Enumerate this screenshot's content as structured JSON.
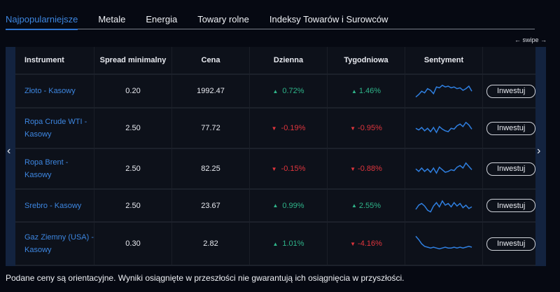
{
  "tabs": [
    {
      "label": "Najpopularniejsze",
      "active": true
    },
    {
      "label": "Metale"
    },
    {
      "label": "Energia"
    },
    {
      "label": "Towary rolne"
    },
    {
      "label": "Indeksy Towarów i Surowców"
    }
  ],
  "swipe_hint": "← swipe →",
  "table": {
    "headers": [
      "Instrument",
      "Spread minimalny",
      "Cena",
      "Dzienna",
      "Tygodniowa",
      "Sentyment",
      ""
    ],
    "rows": [
      {
        "instrument": "Złoto - Kasowy",
        "spread": "0.20",
        "price": "1992.47",
        "daily": "0.72%",
        "daily_dir": "up",
        "weekly": "1.46%",
        "weekly_dir": "up",
        "button": "Inwestuj",
        "spark": [
          2,
          5,
          9,
          7,
          12,
          10,
          6,
          14,
          13,
          16,
          14,
          15,
          13,
          14,
          12,
          13,
          10,
          12,
          15,
          9
        ]
      },
      {
        "instrument": "Ropa Crude WTI - Kasowy",
        "spread": "2.50",
        "price": "77.72",
        "daily": "-0.19%",
        "daily_dir": "down",
        "weekly": "-0.95%",
        "weekly_dir": "down",
        "button": "Inwestuj",
        "spark": [
          9,
          7,
          10,
          6,
          9,
          5,
          10,
          4,
          11,
          8,
          6,
          5,
          9,
          8,
          12,
          14,
          11,
          16,
          13,
          8
        ]
      },
      {
        "instrument": "Ropa Brent - Kasowy",
        "spread": "2.50",
        "price": "82.25",
        "daily": "-0.15%",
        "daily_dir": "down",
        "weekly": "-0.88%",
        "weekly_dir": "down",
        "button": "Inwestuj",
        "spark": [
          9,
          6,
          10,
          6,
          9,
          5,
          10,
          4,
          11,
          8,
          5,
          6,
          8,
          7,
          11,
          13,
          10,
          16,
          12,
          8
        ]
      },
      {
        "instrument": "Srebro - Kasowy",
        "spread": "2.50",
        "price": "23.67",
        "daily": "0.99%",
        "daily_dir": "up",
        "weekly": "2.55%",
        "weekly_dir": "up",
        "button": "Inwestuj",
        "spark": [
          5,
          10,
          12,
          9,
          4,
          2,
          9,
          13,
          8,
          15,
          10,
          12,
          8,
          13,
          9,
          12,
          7,
          10,
          6,
          8
        ]
      },
      {
        "instrument": "Gaz Ziemny (USA) - Kasowy",
        "spread": "0.30",
        "price": "2.82",
        "daily": "1.01%",
        "daily_dir": "up",
        "weekly": "-4.16%",
        "weekly_dir": "down",
        "button": "Inwestuj",
        "spark": [
          18,
          14,
          9,
          6,
          5,
          4,
          5,
          4,
          3,
          4,
          5,
          4,
          4,
          5,
          4,
          5,
          4,
          5,
          6,
          5
        ]
      }
    ]
  },
  "colors": {
    "accent": "#3d86e0",
    "up": "#2fb58a",
    "down": "#e0353d"
  },
  "footer": "Podane ceny są orientacyjne. Wyniki osiągnięte w przeszłości nie gwarantują ich osiągnięcia w przyszłości."
}
